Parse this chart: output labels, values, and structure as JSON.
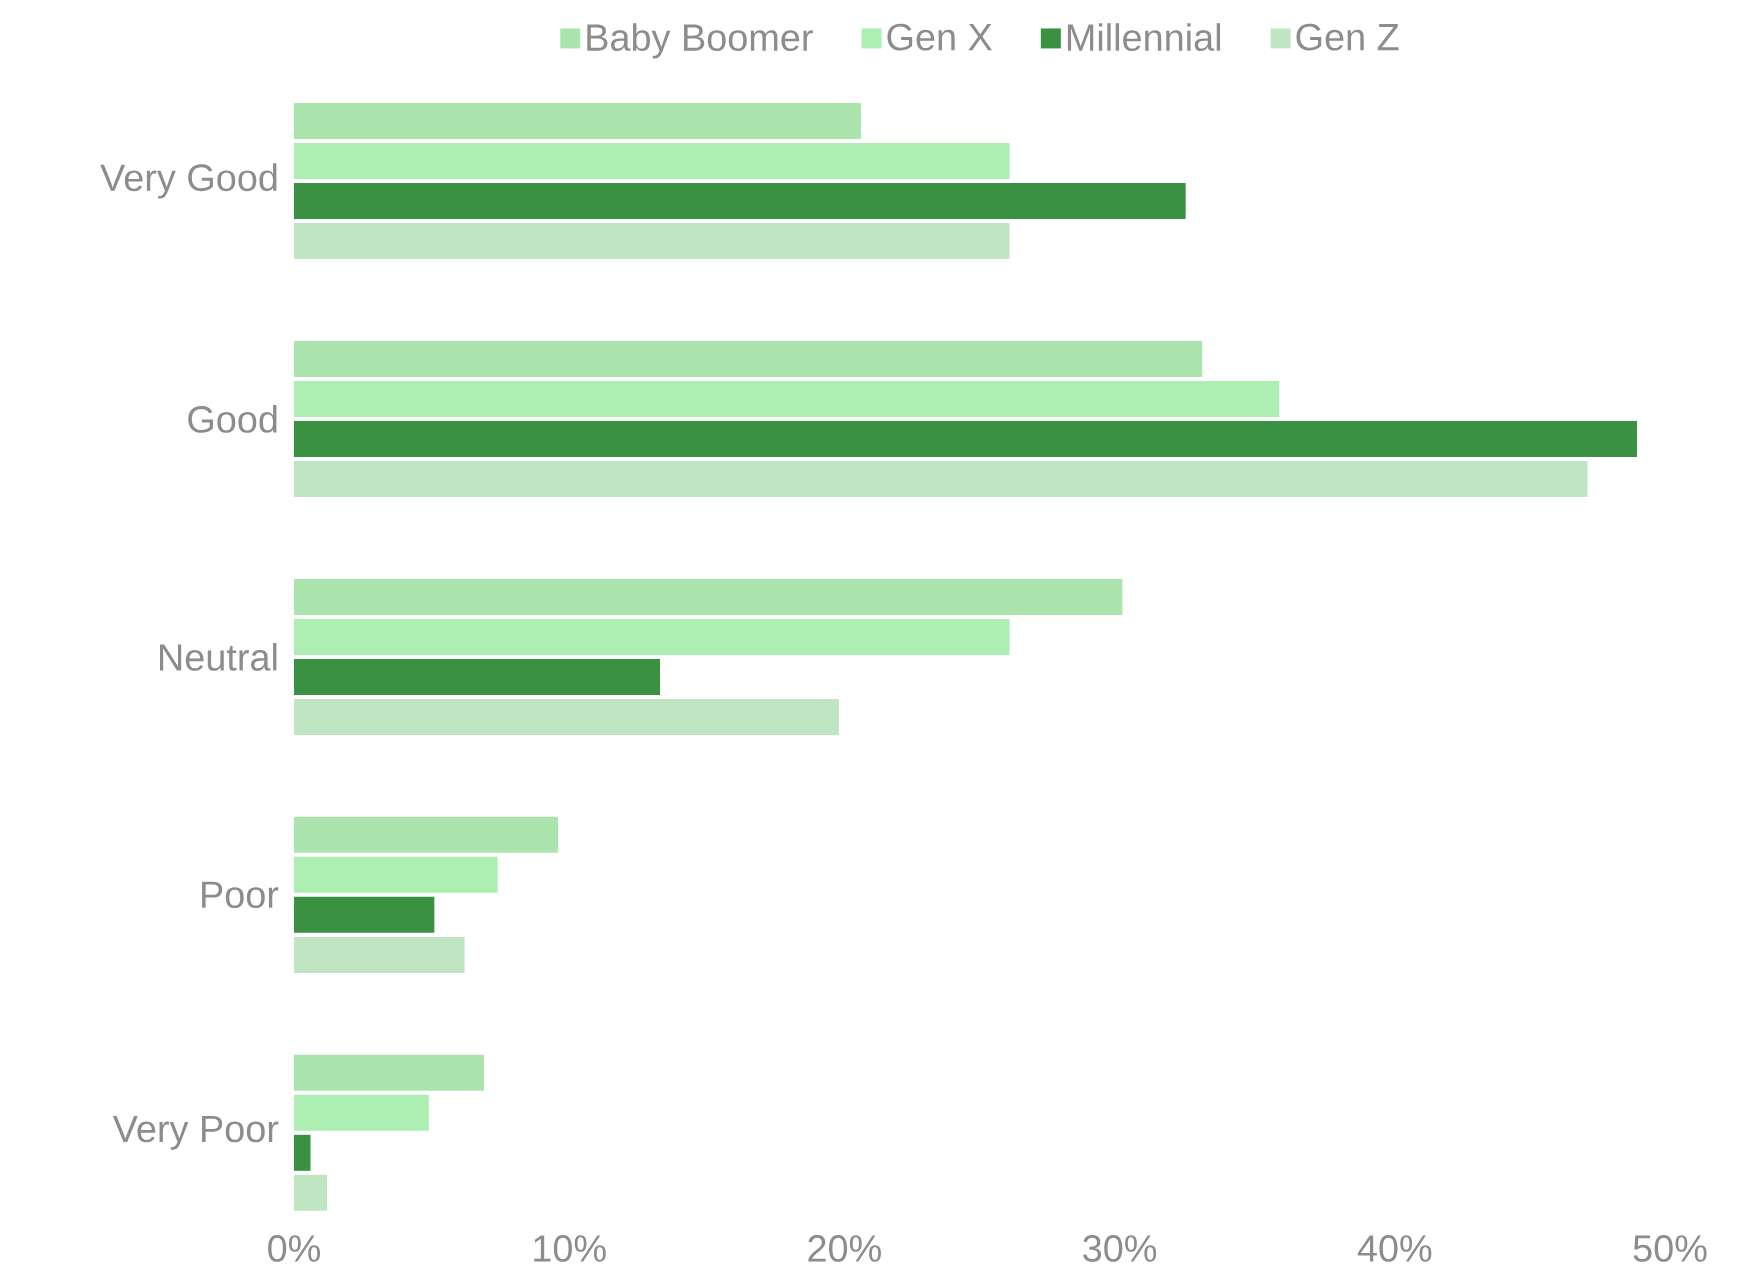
{
  "chart_data": {
    "type": "bar",
    "orientation": "horizontal",
    "categories": [
      "Very Good",
      "Good",
      "Neutral",
      "Poor",
      "Very Poor"
    ],
    "series": [
      {
        "name": "Baby Boomer",
        "color": "#ace4ae",
        "values": [
          20.6,
          33.0,
          30.1,
          9.6,
          6.9
        ]
      },
      {
        "name": "Gen X",
        "color": "#adeeb2",
        "values": [
          26.0,
          35.8,
          26.0,
          7.4,
          4.9
        ]
      },
      {
        "name": "Millennial",
        "color": "#3a9141",
        "values": [
          32.4,
          48.8,
          13.3,
          5.1,
          0.6
        ]
      },
      {
        "name": "Gen Z",
        "color": "#c0e5c3",
        "values": [
          26.0,
          47.0,
          19.8,
          6.2,
          1.2
        ]
      }
    ],
    "xlim": [
      0,
      50
    ],
    "xticks": [
      {
        "value": 0,
        "label": "0%"
      },
      {
        "value": 10,
        "label": "10%"
      },
      {
        "value": 20,
        "label": "20%"
      },
      {
        "value": 30,
        "label": "30%"
      },
      {
        "value": 40,
        "label": "40%"
      },
      {
        "value": 50,
        "label": "50%"
      }
    ],
    "legend": "top"
  }
}
